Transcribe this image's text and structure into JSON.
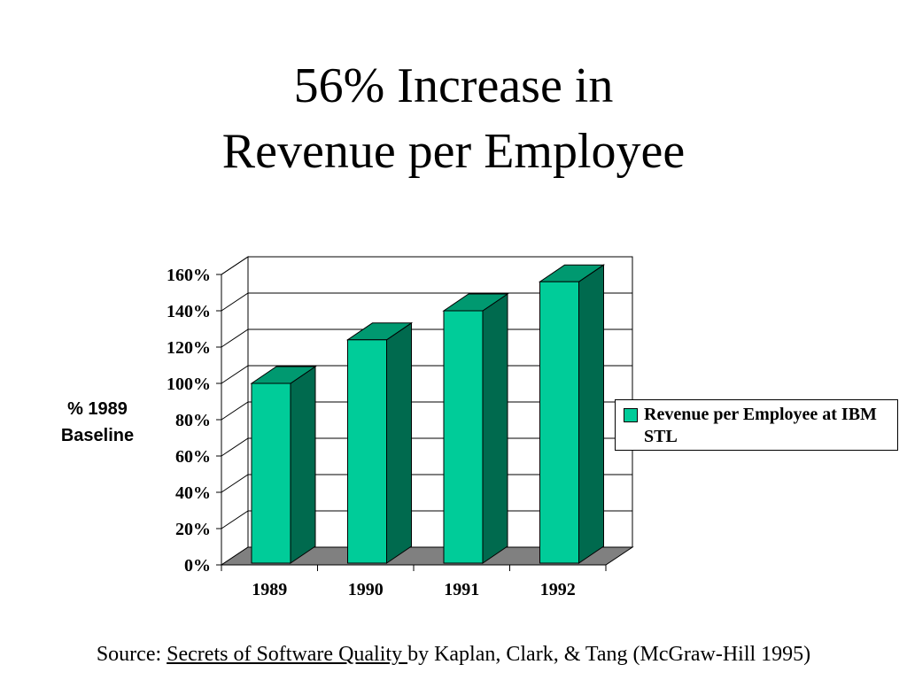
{
  "slide": {
    "title_line1": "56% Increase in",
    "title_line2": "Revenue per Employee",
    "source_prefix": "Source: ",
    "source_book": "Secrets of Software Quality ",
    "source_suffix": " by Kaplan, Clark, & Tang (McGraw-Hill 1995)"
  },
  "chart_data": {
    "type": "bar",
    "style": "3d-column",
    "title": "56% Increase in Revenue per Employee",
    "ylabel_line1": "% 1989",
    "ylabel_line2": "Baseline",
    "xlabel": "",
    "categories": [
      "1989",
      "1990",
      "1991",
      "1992"
    ],
    "series": [
      {
        "name": "Revenue per Employee at IBM STL",
        "values": [
          100,
          124,
          140,
          156
        ]
      }
    ],
    "y_ticks": [
      "0%",
      "20%",
      "40%",
      "60%",
      "80%",
      "100%",
      "120%",
      "140%",
      "160%"
    ],
    "ylim": [
      0,
      160
    ],
    "grid": true,
    "legend_position": "right",
    "colors": {
      "bar_front": "#00CC99",
      "bar_side": "#006A4E",
      "bar_top": "#009970",
      "floor": "#808080"
    }
  }
}
